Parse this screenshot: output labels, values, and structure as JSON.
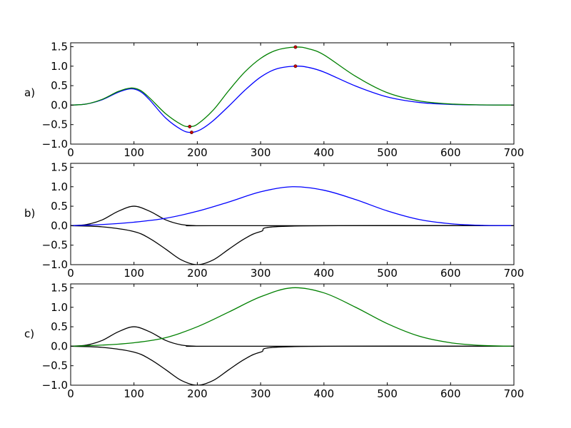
{
  "chart_data": [
    {
      "type": "line",
      "panel_label": "a)",
      "xlim": [
        0,
        700
      ],
      "ylim": [
        -1.0,
        1.6
      ],
      "xticks": [
        "0",
        "100",
        "200",
        "300",
        "400",
        "500",
        "600",
        "700"
      ],
      "yticks": [
        "−1.0",
        "−0.5",
        "0.0",
        "0.5",
        "1.0",
        "1.5"
      ],
      "series": [
        {
          "color": "#0000ff",
          "x": [
            0,
            25,
            50,
            75,
            95,
            110,
            125,
            150,
            175,
            190,
            205,
            225,
            250,
            275,
            300,
            325,
            355,
            375,
            400,
            450,
            500,
            550,
            600,
            650,
            700
          ],
          "y": [
            0.0,
            0.03,
            0.14,
            0.33,
            0.42,
            0.35,
            0.13,
            -0.33,
            -0.63,
            -0.7,
            -0.63,
            -0.4,
            -0.02,
            0.38,
            0.72,
            0.93,
            1.0,
            0.97,
            0.85,
            0.49,
            0.21,
            0.07,
            0.02,
            0.005,
            0.0
          ]
        },
        {
          "color": "#008000",
          "x": [
            0,
            25,
            50,
            75,
            95,
            110,
            125,
            150,
            175,
            187,
            200,
            225,
            250,
            275,
            300,
            325,
            355,
            375,
            400,
            450,
            500,
            550,
            600,
            650,
            700
          ],
          "y": [
            0.0,
            0.03,
            0.15,
            0.35,
            0.44,
            0.38,
            0.18,
            -0.22,
            -0.5,
            -0.55,
            -0.49,
            -0.13,
            0.38,
            0.85,
            1.2,
            1.41,
            1.49,
            1.45,
            1.29,
            0.74,
            0.32,
            0.11,
            0.03,
            0.007,
            0.0
          ]
        }
      ],
      "markers": [
        {
          "x": 188,
          "y": -0.55
        },
        {
          "x": 191,
          "y": -0.7
        },
        {
          "x": 355,
          "y": 1.49
        },
        {
          "x": 355,
          "y": 1.0
        }
      ]
    },
    {
      "type": "line",
      "panel_label": "b)",
      "xlim": [
        0,
        700
      ],
      "ylim": [
        -1.0,
        1.6
      ],
      "xticks": [
        "0",
        "100",
        "200",
        "300",
        "400",
        "500",
        "600",
        "700"
      ],
      "yticks": [
        "−1.0",
        "−0.5",
        "0.0",
        "0.5",
        "1.0",
        "1.5"
      ],
      "series": [
        {
          "color": "#000000",
          "x": [
            0,
            25,
            50,
            75,
            100,
            125,
            150,
            175,
            200,
            225,
            700
          ],
          "y": [
            0.0,
            0.03,
            0.15,
            0.37,
            0.5,
            0.37,
            0.15,
            0.03,
            0.0,
            0.0,
            0.0
          ]
        },
        {
          "color": "#000000",
          "x": [
            0,
            50,
            100,
            125,
            150,
            175,
            200,
            225,
            250,
            275,
            300,
            350,
            700
          ],
          "y": [
            0.0,
            -0.03,
            -0.15,
            -0.33,
            -0.6,
            -0.88,
            -1.0,
            -0.88,
            -0.6,
            -0.33,
            -0.15,
            -0.01,
            0.0
          ]
        },
        {
          "color": "#0000ff",
          "x": [
            0,
            50,
            100,
            150,
            200,
            250,
            300,
            350,
            400,
            450,
            500,
            550,
            600,
            650,
            700
          ],
          "y": [
            0.0,
            0.03,
            0.09,
            0.19,
            0.37,
            0.61,
            0.87,
            1.0,
            0.91,
            0.67,
            0.38,
            0.16,
            0.05,
            0.01,
            0.0
          ]
        }
      ]
    },
    {
      "type": "line",
      "panel_label": "c)",
      "xlim": [
        0,
        700
      ],
      "ylim": [
        -1.0,
        1.6
      ],
      "xticks": [
        "0",
        "100",
        "200",
        "300",
        "400",
        "500",
        "600",
        "700"
      ],
      "yticks": [
        "−1.0",
        "−0.5",
        "0.0",
        "0.5",
        "1.0",
        "1.5"
      ],
      "series": [
        {
          "color": "#000000",
          "x": [
            0,
            25,
            50,
            75,
            100,
            125,
            150,
            175,
            200,
            225,
            700
          ],
          "y": [
            0.0,
            0.03,
            0.15,
            0.37,
            0.5,
            0.37,
            0.15,
            0.03,
            0.0,
            0.0,
            0.0
          ]
        },
        {
          "color": "#000000",
          "x": [
            0,
            50,
            100,
            125,
            150,
            175,
            200,
            225,
            250,
            275,
            300,
            350,
            700
          ],
          "y": [
            0.0,
            -0.03,
            -0.15,
            -0.33,
            -0.6,
            -0.88,
            -1.0,
            -0.88,
            -0.6,
            -0.33,
            -0.15,
            -0.01,
            0.0
          ]
        },
        {
          "color": "#008000",
          "x": [
            0,
            50,
            100,
            150,
            200,
            250,
            300,
            350,
            400,
            450,
            500,
            550,
            600,
            650,
            700
          ],
          "y": [
            0.0,
            0.03,
            0.09,
            0.22,
            0.5,
            0.88,
            1.27,
            1.5,
            1.37,
            1.0,
            0.58,
            0.26,
            0.09,
            0.02,
            0.0
          ]
        }
      ]
    }
  ]
}
